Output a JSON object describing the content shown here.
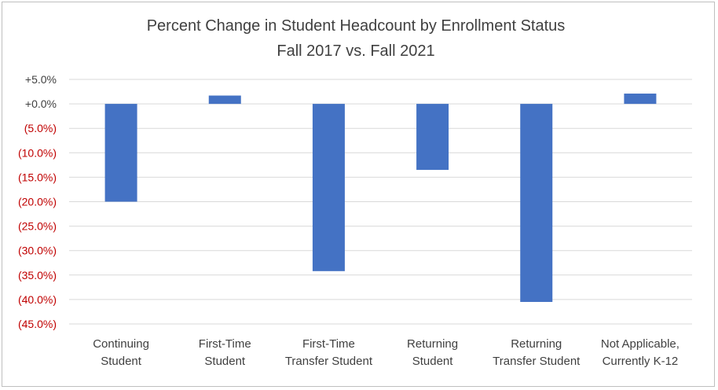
{
  "chart_data": {
    "type": "bar",
    "title": "Percent Change in Student Headcount by Enrollment Status",
    "subtitle": "Fall 2017 vs. Fall 2021",
    "categories": [
      [
        "Continuing",
        "Student"
      ],
      [
        "First-Time",
        "Student"
      ],
      [
        "First-Time",
        "Transfer Student"
      ],
      [
        "Returning",
        "Student"
      ],
      [
        "Returning",
        "Transfer Student"
      ],
      [
        "Not Applicable,",
        "Currently K-12"
      ]
    ],
    "values": [
      -20.0,
      1.7,
      -34.2,
      -13.5,
      -40.5,
      2.1
    ],
    "ylim": [
      -45,
      5
    ],
    "yticks": [
      {
        "value": 5,
        "label": "+5.0%"
      },
      {
        "value": 0,
        "label": "+0.0%"
      },
      {
        "value": -5,
        "label": "(5.0%)"
      },
      {
        "value": -10,
        "label": "(10.0%)"
      },
      {
        "value": -15,
        "label": "(15.0%)"
      },
      {
        "value": -20,
        "label": "(20.0%)"
      },
      {
        "value": -25,
        "label": "(25.0%)"
      },
      {
        "value": -30,
        "label": "(30.0%)"
      },
      {
        "value": -35,
        "label": "(35.0%)"
      },
      {
        "value": -40,
        "label": "(40.0%)"
      },
      {
        "value": -45,
        "label": "(45.0%)"
      }
    ],
    "grid": true,
    "colors": {
      "bar": "#4472c4",
      "positive_tick": "#404040",
      "negative_tick": "#c00000",
      "grid": "#d9d9d9"
    }
  }
}
